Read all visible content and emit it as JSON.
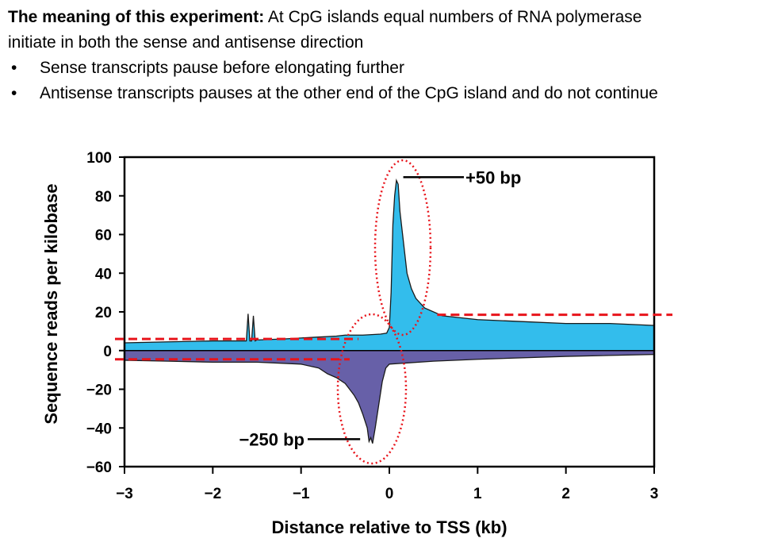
{
  "slide": {
    "intro_bold": "The meaning of this experiment:",
    "intro_rest": " At CpG islands equal numbers of RNA polymerase",
    "intro_line2": "initiate in both the sense and antisense direction",
    "bullets": [
      "Sense transcripts pause before elongating further",
      "Antisense transcripts pauses at the other end of the CpG island and do not continue"
    ]
  },
  "chart_data": {
    "type": "area",
    "title": "",
    "xlabel": "Distance relative to TSS (kb)",
    "ylabel": "Sequence reads per kilobase",
    "xlim": [
      -3,
      3
    ],
    "ylim": [
      -60,
      100
    ],
    "xticks": [
      "−3",
      "−2",
      "−1",
      "0",
      "1",
      "2",
      "3"
    ],
    "yticks": [
      "100",
      "80",
      "60",
      "40",
      "20",
      "0",
      "−20",
      "−40",
      "−60"
    ],
    "grid": false,
    "colors": {
      "sense": "#33bdec",
      "antisense": "#6760a8",
      "annotation": "#e8141b"
    },
    "series": [
      {
        "x": [
          -3,
          -2.5,
          -2,
          -1.62,
          -1.6,
          -1.58,
          -1.56,
          -1.54,
          -1.52,
          -1.5,
          -1.2,
          -1,
          -0.8,
          -0.6,
          -0.5,
          -0.3,
          -0.1,
          -0.03,
          0,
          0.02,
          0.04,
          0.06,
          0.08,
          0.1,
          0.12,
          0.15,
          0.2,
          0.25,
          0.3,
          0.4,
          0.6,
          1,
          1.5,
          2,
          2.5,
          3
        ],
        "y": [
          4,
          4.5,
          5,
          5,
          19,
          5,
          5,
          18,
          5,
          5.5,
          6,
          6.5,
          7,
          7.5,
          8,
          8,
          8.5,
          9,
          12,
          30,
          65,
          80,
          88,
          86,
          72,
          60,
          40,
          32,
          27,
          22,
          18,
          16,
          15,
          14,
          14,
          13
        ]
      },
      {
        "x": [
          -3,
          -2.5,
          -2,
          -1.5,
          -1,
          -0.8,
          -0.7,
          -0.6,
          -0.5,
          -0.45,
          -0.4,
          -0.35,
          -0.3,
          -0.25,
          -0.23,
          -0.21,
          -0.19,
          -0.16,
          -0.12,
          -0.08,
          -0.04,
          0,
          0.5,
          1,
          2,
          3
        ],
        "y": [
          -5,
          -5.5,
          -6,
          -6,
          -7,
          -9,
          -12,
          -14,
          -17,
          -20,
          -23,
          -27,
          -33,
          -40,
          -47,
          -45,
          -48,
          -40,
          -28,
          -16,
          -9,
          -7,
          -5.5,
          -4.5,
          -3,
          -2
        ]
      }
    ],
    "annotations": [
      {
        "label": "+50 bp",
        "x": 0.05,
        "y": 88
      },
      {
        "label": "−250 bp",
        "x": -0.25,
        "y": -47
      }
    ],
    "reference_lines": [
      {
        "y": 6,
        "x": [
          -3,
          -0.35
        ]
      },
      {
        "y": -4.5,
        "x": [
          -3,
          -0.45
        ]
      },
      {
        "y": 18.5,
        "x": [
          0.65,
          3
        ]
      }
    ]
  }
}
